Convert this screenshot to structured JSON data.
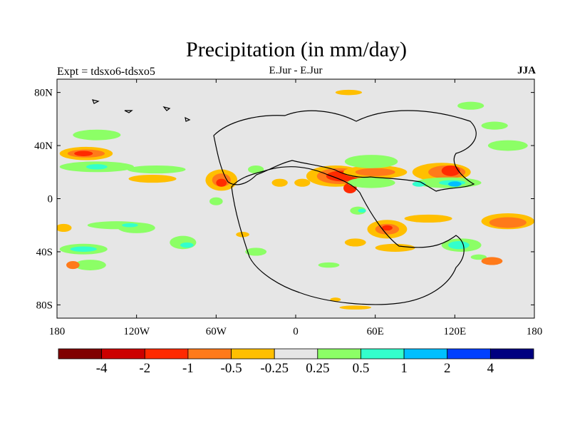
{
  "title": "Precipitation (in mm/day)",
  "subtitle_left": "Expt = tdsxo6-tdsxo5",
  "subtitle_center": "E.Jur - E.Jur",
  "subtitle_right": "JJA",
  "background_color": "#e6e6e6",
  "chart_data": {
    "type": "heatmap",
    "title": "Precipitation (in mm/day)",
    "projection": "cylindrical-equidistant",
    "x_range_lon": [
      -180,
      180
    ],
    "y_range_lat": [
      -90,
      90
    ],
    "x_ticks": [
      {
        "value": -180,
        "label": "180"
      },
      {
        "value": -120,
        "label": "120W"
      },
      {
        "value": -60,
        "label": "60W"
      },
      {
        "value": 0,
        "label": "0"
      },
      {
        "value": 60,
        "label": "60E"
      },
      {
        "value": 120,
        "label": "120E"
      },
      {
        "value": 180,
        "label": "180"
      }
    ],
    "y_ticks": [
      {
        "value": 80,
        "label": "80N"
      },
      {
        "value": 40,
        "label": "40N"
      },
      {
        "value": 0,
        "label": "0"
      },
      {
        "value": -40,
        "label": "40S"
      },
      {
        "value": -80,
        "label": "80S"
      }
    ],
    "colorbar": {
      "colors": [
        "#800000",
        "#cc0000",
        "#ff2a00",
        "#ff7a1a",
        "#ffbf00",
        "#e6e6e6",
        "#8cff66",
        "#33ffcc",
        "#00bfff",
        "#0040ff",
        "#000080"
      ],
      "labels": [
        "-4",
        "-2",
        "-1",
        "-0.5",
        "-0.25",
        "0.25",
        "0.5",
        "1",
        "2",
        "4"
      ]
    },
    "anomaly_regions": [
      {
        "lon": -158,
        "lat": 34,
        "rx": 20,
        "ry": 5,
        "level": "-0.25"
      },
      {
        "lon": -158,
        "lat": 34,
        "rx": 14,
        "ry": 3,
        "level": "-0.5"
      },
      {
        "lon": -160,
        "lat": 34,
        "rx": 7,
        "ry": 2,
        "level": "-1"
      },
      {
        "lon": -150,
        "lat": 24,
        "rx": 28,
        "ry": 4,
        "level": "0.25"
      },
      {
        "lon": -150,
        "lat": 24,
        "rx": 8,
        "ry": 2,
        "level": "0.5"
      },
      {
        "lon": -108,
        "lat": 15,
        "rx": 18,
        "ry": 3,
        "level": "-0.25"
      },
      {
        "lon": -56,
        "lat": 14,
        "rx": 12,
        "ry": 8,
        "level": "-0.25"
      },
      {
        "lon": -56,
        "lat": 14,
        "rx": 7,
        "ry": 5,
        "level": "-0.5"
      },
      {
        "lon": -56,
        "lat": 12,
        "rx": 4,
        "ry": 3,
        "level": "-1"
      },
      {
        "lon": -30,
        "lat": 22,
        "rx": 6,
        "ry": 3,
        "level": "0.25"
      },
      {
        "lon": -12,
        "lat": 12,
        "rx": 6,
        "ry": 3,
        "level": "-0.25"
      },
      {
        "lon": 5,
        "lat": 12,
        "rx": 6,
        "ry": 3,
        "level": "-0.25"
      },
      {
        "lon": 30,
        "lat": 17,
        "rx": 22,
        "ry": 8,
        "level": "-0.25"
      },
      {
        "lon": 33,
        "lat": 17,
        "rx": 17,
        "ry": 6,
        "level": "-0.5"
      },
      {
        "lon": 35,
        "lat": 17,
        "rx": 12,
        "ry": 4,
        "level": "-1"
      },
      {
        "lon": 41,
        "lat": 8,
        "rx": 5,
        "ry": 4,
        "level": "-1"
      },
      {
        "lon": 60,
        "lat": 20,
        "rx": 24,
        "ry": 5,
        "level": "-0.25"
      },
      {
        "lon": 60,
        "lat": 20,
        "rx": 15,
        "ry": 3,
        "level": "-0.5"
      },
      {
        "lon": 57,
        "lat": 28,
        "rx": 20,
        "ry": 5,
        "level": "0.25"
      },
      {
        "lon": 57,
        "lat": 12,
        "rx": 18,
        "ry": 4,
        "level": "0.25"
      },
      {
        "lon": 110,
        "lat": 20,
        "rx": 22,
        "ry": 7,
        "level": "-0.25"
      },
      {
        "lon": 114,
        "lat": 20,
        "rx": 14,
        "ry": 5,
        "level": "-0.5"
      },
      {
        "lon": 117,
        "lat": 21,
        "rx": 7,
        "ry": 4,
        "level": "-1"
      },
      {
        "lon": 115,
        "lat": 12,
        "rx": 25,
        "ry": 4,
        "level": "0.25"
      },
      {
        "lon": 118,
        "lat": 12,
        "rx": 10,
        "ry": 2,
        "level": "0.5"
      },
      {
        "lon": 120,
        "lat": 11,
        "rx": 5,
        "ry": 2,
        "level": "1"
      },
      {
        "lon": 93,
        "lat": 11,
        "rx": 5,
        "ry": 2,
        "level": "0.5"
      },
      {
        "lon": 47,
        "lat": -9,
        "rx": 6,
        "ry": 3,
        "level": "0.25"
      },
      {
        "lon": 50,
        "lat": -9,
        "rx": 3,
        "ry": 1.5,
        "level": "0.5"
      },
      {
        "lon": 69,
        "lat": -23,
        "rx": 15,
        "ry": 7,
        "level": "-0.25"
      },
      {
        "lon": 69,
        "lat": -23,
        "rx": 9,
        "ry": 4,
        "level": "-0.5"
      },
      {
        "lon": 69,
        "lat": -22,
        "rx": 4,
        "ry": 2,
        "level": "-1"
      },
      {
        "lon": 100,
        "lat": -15,
        "rx": 18,
        "ry": 3,
        "level": "-0.25"
      },
      {
        "lon": 160,
        "lat": -17,
        "rx": 20,
        "ry": 6,
        "level": "-0.25"
      },
      {
        "lon": 160,
        "lat": -18,
        "rx": 14,
        "ry": 4,
        "level": "-0.5"
      },
      {
        "lon": 75,
        "lat": -37,
        "rx": 15,
        "ry": 3,
        "level": "-0.25"
      },
      {
        "lon": 125,
        "lat": -35,
        "rx": 15,
        "ry": 5,
        "level": "0.25"
      },
      {
        "lon": 123,
        "lat": -35,
        "rx": 8,
        "ry": 3,
        "level": "0.5"
      },
      {
        "lon": 138,
        "lat": -44,
        "rx": 6,
        "ry": 2,
        "level": "0.25"
      },
      {
        "lon": 148,
        "lat": -47,
        "rx": 8,
        "ry": 3,
        "level": "-0.5"
      },
      {
        "lon": 45,
        "lat": -33,
        "rx": 8,
        "ry": 3,
        "level": "-0.25"
      },
      {
        "lon": 25,
        "lat": -50,
        "rx": 8,
        "ry": 2,
        "level": "0.25"
      },
      {
        "lon": 45,
        "lat": -82,
        "rx": 12,
        "ry": 1.5,
        "level": "-0.25"
      },
      {
        "lon": 30,
        "lat": -76,
        "rx": 4,
        "ry": 1.5,
        "level": "-0.25"
      },
      {
        "lon": -105,
        "lat": 22,
        "rx": 22,
        "ry": 3,
        "level": "0.25"
      },
      {
        "lon": -135,
        "lat": -20,
        "rx": 22,
        "ry": 3,
        "level": "0.25"
      },
      {
        "lon": -120,
        "lat": -22,
        "rx": 14,
        "ry": 4,
        "level": "0.25"
      },
      {
        "lon": -125,
        "lat": -20,
        "rx": 6,
        "ry": 1.5,
        "level": "0.5"
      },
      {
        "lon": -85,
        "lat": -33,
        "rx": 10,
        "ry": 5,
        "level": "0.25"
      },
      {
        "lon": -82,
        "lat": -35,
        "rx": 5,
        "ry": 2,
        "level": "0.5"
      },
      {
        "lon": -160,
        "lat": -38,
        "rx": 18,
        "ry": 4,
        "level": "0.25"
      },
      {
        "lon": -160,
        "lat": -38,
        "rx": 10,
        "ry": 2,
        "level": "0.5"
      },
      {
        "lon": -155,
        "lat": -50,
        "rx": 12,
        "ry": 4,
        "level": "0.25"
      },
      {
        "lon": -168,
        "lat": -50,
        "rx": 5,
        "ry": 3,
        "level": "-0.5"
      },
      {
        "lon": -175,
        "lat": -22,
        "rx": 6,
        "ry": 3,
        "level": "-0.25"
      },
      {
        "lon": -150,
        "lat": 48,
        "rx": 18,
        "ry": 4,
        "level": "0.25"
      },
      {
        "lon": 132,
        "lat": 70,
        "rx": 10,
        "ry": 3,
        "level": "0.25"
      },
      {
        "lon": 40,
        "lat": 80,
        "rx": 10,
        "ry": 2,
        "level": "-0.25"
      },
      {
        "lon": 150,
        "lat": 55,
        "rx": 10,
        "ry": 3,
        "level": "0.25"
      },
      {
        "lon": 160,
        "lat": 40,
        "rx": 15,
        "ry": 4,
        "level": "0.25"
      },
      {
        "lon": -30,
        "lat": -40,
        "rx": 8,
        "ry": 3,
        "level": "0.25"
      },
      {
        "lon": -40,
        "lat": -27,
        "rx": 5,
        "ry": 2,
        "level": "-0.25"
      },
      {
        "lon": -60,
        "lat": -2,
        "rx": 5,
        "ry": 3,
        "level": "0.25"
      }
    ]
  }
}
